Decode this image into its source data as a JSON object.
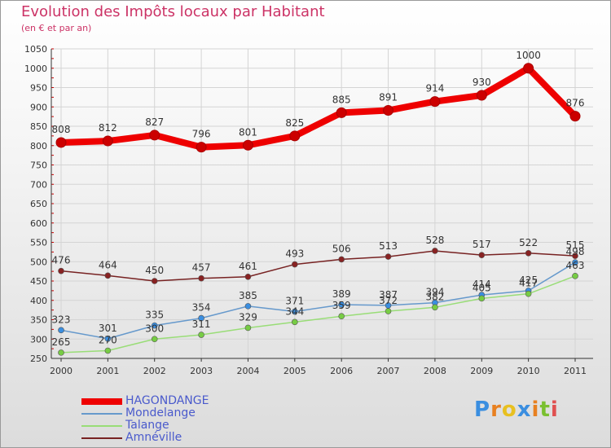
{
  "title": "Evolution des Impôts locaux par Habitant",
  "subtitle": "(en € et par an)",
  "logo": {
    "letters": [
      "P",
      "r",
      "o",
      "x",
      "i",
      "t",
      "i"
    ],
    "colors": [
      "#3a8ee0",
      "#e88020",
      "#e8c020",
      "#3a8ee0",
      "#e88020",
      "#7ac030",
      "#e05050"
    ]
  },
  "chart_data": {
    "type": "line",
    "title": "Evolution des Impôts locaux par Habitant",
    "subtitle": "(en € et par an)",
    "x": [
      "2000",
      "2001",
      "2002",
      "2003",
      "2004",
      "2005",
      "2006",
      "2007",
      "2008",
      "2009",
      "2010",
      "2011"
    ],
    "ylim": [
      250,
      1050
    ],
    "yticks": [
      250,
      300,
      350,
      400,
      450,
      500,
      550,
      600,
      650,
      700,
      750,
      800,
      850,
      900,
      950,
      1000,
      1050
    ],
    "grid": true,
    "legend_position": "bottom-left",
    "series": [
      {
        "name": "HAGONDANGE",
        "color": "#ee0000",
        "marker": "#cc0000",
        "weight": "thick",
        "values": [
          808,
          812,
          827,
          796,
          801,
          825,
          885,
          891,
          914,
          930,
          1000,
          876
        ]
      },
      {
        "name": "Mondelange",
        "color": "#6699cc",
        "marker": "#3a8ee0",
        "weight": "thin",
        "values": [
          323,
          301,
          335,
          354,
          385,
          371,
          389,
          387,
          394,
          414,
          425,
          498
        ]
      },
      {
        "name": "Talange",
        "color": "#99dd77",
        "marker": "#77cc44",
        "weight": "thin",
        "values": [
          265,
          270,
          300,
          311,
          329,
          344,
          359,
          372,
          382,
          405,
          417,
          463
        ]
      },
      {
        "name": "Amnéville",
        "color": "#772222",
        "marker": "#882222",
        "weight": "thin",
        "values": [
          476,
          464,
          450,
          457,
          461,
          493,
          506,
          513,
          528,
          517,
          522,
          515
        ]
      }
    ]
  }
}
